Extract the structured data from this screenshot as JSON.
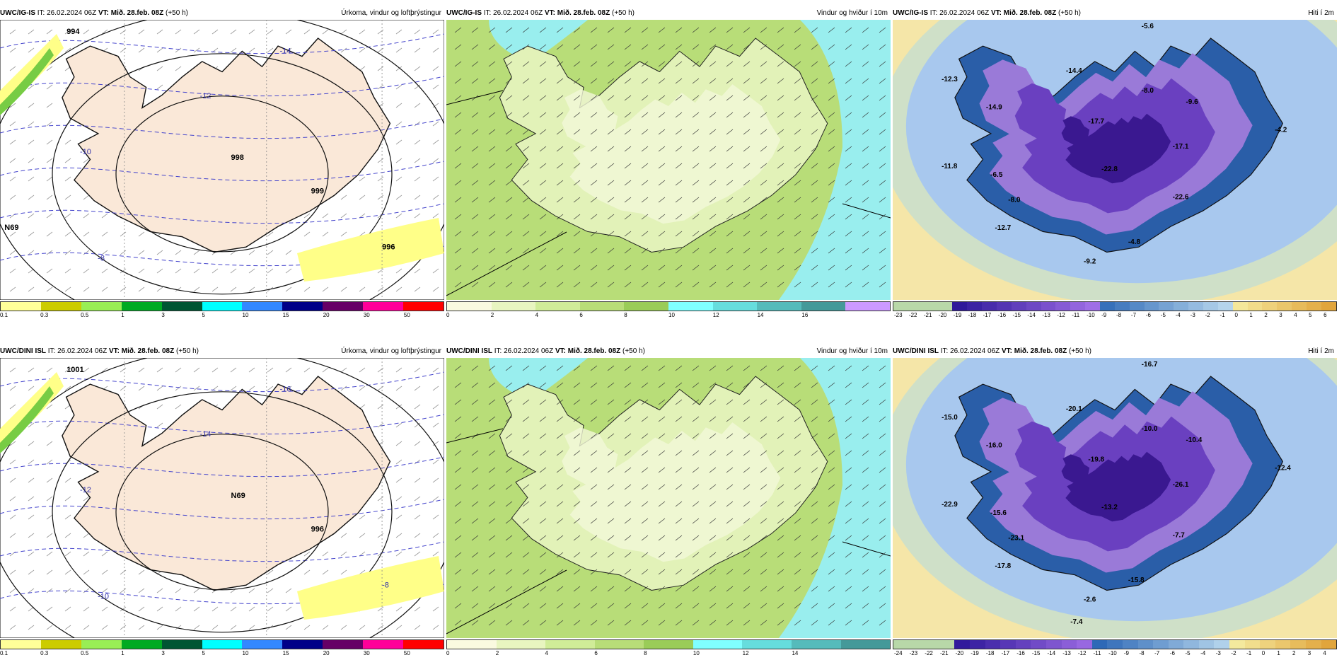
{
  "rows": [
    {
      "panels": [
        {
          "model": "UWC/IG-IS",
          "it": "IT: 26.02.2024 06Z",
          "vt": "VT: Mið. 28.feb. 08Z",
          "offset": "(+50 h)",
          "title": "Úrkoma, vindur og loftþrýstingur",
          "type": "precip",
          "labels": [
            "994",
            "999",
            "-10",
            "-12",
            "-14",
            "-8",
            "996",
            "998",
            "N69"
          ],
          "legend_colors": [
            "#ffff99",
            "#cccc00",
            "#99ee55",
            "#00aa22",
            "#005533",
            "#00ffff",
            "#3388ff",
            "#000088",
            "#660066",
            "#ff0099",
            "#ff0000"
          ],
          "legend_ticks": [
            "0.1",
            "0.3",
            "0.5",
            "1",
            "3",
            "5",
            "10",
            "15",
            "20",
            "30",
            "50"
          ]
        },
        {
          "model": "UWC/IG-IS",
          "it": "IT: 26.02.2024 06Z",
          "vt": "VT: Mið. 28.feb. 08Z",
          "offset": "(+50 h)",
          "title": "Vindur og hviður í 10m",
          "type": "wind",
          "legend_colors": [
            "#fafae0",
            "#e8f5c0",
            "#d0ec98",
            "#b8dd78",
            "#9acc58",
            "#80ffff",
            "#66dddd",
            "#55bbbb",
            "#449999",
            "#cc99ff"
          ],
          "legend_ticks": [
            "0",
            "2",
            "4",
            "6",
            "8",
            "10",
            "12",
            "14",
            "16"
          ]
        },
        {
          "model": "UWC/IG-IS",
          "it": "IT: 26.02.2024 06Z",
          "vt": "VT: Mið. 28.feb. 08Z",
          "offset": "(+50 h)",
          "title": "Hiti í 2m",
          "type": "temp",
          "labels": [
            "-5.6",
            "-12.3",
            "-14.4",
            "-8.0",
            "-14.9",
            "-9.6",
            "-17.7",
            "-4.2",
            "-17.1",
            "-11.8",
            "-6.5",
            "-22.8",
            "-8.0",
            "-22.6",
            "-12.7",
            "-4.8",
            "-9.2"
          ],
          "legend_ticks": [
            "-23",
            "-22",
            "-21",
            "-20",
            "-19",
            "-18",
            "-17",
            "-16",
            "-15",
            "-14",
            "-13",
            "-12",
            "-11",
            "-10",
            "-9",
            "-8",
            "-7",
            "-6",
            "-5",
            "-4",
            "-3",
            "-2",
            "-1",
            "0",
            "1",
            "2",
            "3",
            "4",
            "5",
            "6"
          ]
        }
      ]
    },
    {
      "panels": [
        {
          "model": "UWC/DINI ISL",
          "it": "IT: 26.02.2024 06Z",
          "vt": "VT: Mið. 28.feb. 08Z",
          "offset": "(+50 h)",
          "title": "Úrkoma, vindur og loftþrýstingur",
          "type": "precip",
          "labels": [
            "1001",
            "996",
            "-12",
            "-14",
            "-16",
            "-10",
            "-8",
            "N69"
          ],
          "legend_colors": [
            "#ffff99",
            "#cccc00",
            "#99ee55",
            "#00aa22",
            "#005533",
            "#00ffff",
            "#3388ff",
            "#000088",
            "#660066",
            "#ff0099",
            "#ff0000"
          ],
          "legend_ticks": [
            "0.1",
            "0.3",
            "0.5",
            "1",
            "3",
            "5",
            "10",
            "15",
            "20",
            "30",
            "50"
          ]
        },
        {
          "model": "UWC/DINI ISL",
          "it": "IT: 26.02.2024 06Z",
          "vt": "VT: Mið. 28.feb. 08Z",
          "offset": "(+50 h)",
          "title": "Vindur og hviður í 10m",
          "type": "wind",
          "legend_colors": [
            "#fafae0",
            "#e8f5c0",
            "#d0ec98",
            "#b8dd78",
            "#9acc58",
            "#80ffff",
            "#66dddd",
            "#55bbbb",
            "#449999"
          ],
          "legend_ticks": [
            "0",
            "2",
            "4",
            "6",
            "8",
            "10",
            "12",
            "14"
          ]
        },
        {
          "model": "UWC/DINI ISL",
          "it": "IT: 26.02.2024 06Z",
          "vt": "VT: Mið. 28.feb. 08Z",
          "offset": "(+50 h)",
          "title": "Hiti í 2m",
          "type": "temp",
          "labels": [
            "-16.7",
            "-15.0",
            "-20.1",
            "-10.0",
            "-16.0",
            "-10.4",
            "-19.8",
            "-12.4",
            "-26.1",
            "-22.9",
            "-15.6",
            "-13.2",
            "-23.1",
            "-7.7",
            "-17.8",
            "-15.8",
            "-2.6",
            "-7.4"
          ],
          "legend_ticks": [
            "-24",
            "-23",
            "-22",
            "-21",
            "-20",
            "-19",
            "-18",
            "-17",
            "-16",
            "-15",
            "-14",
            "-13",
            "-12",
            "-11",
            "-10",
            "-9",
            "-8",
            "-7",
            "-6",
            "-5",
            "-4",
            "-3",
            "-2",
            "-1",
            "0",
            "1",
            "2",
            "3",
            "4"
          ]
        }
      ]
    }
  ]
}
